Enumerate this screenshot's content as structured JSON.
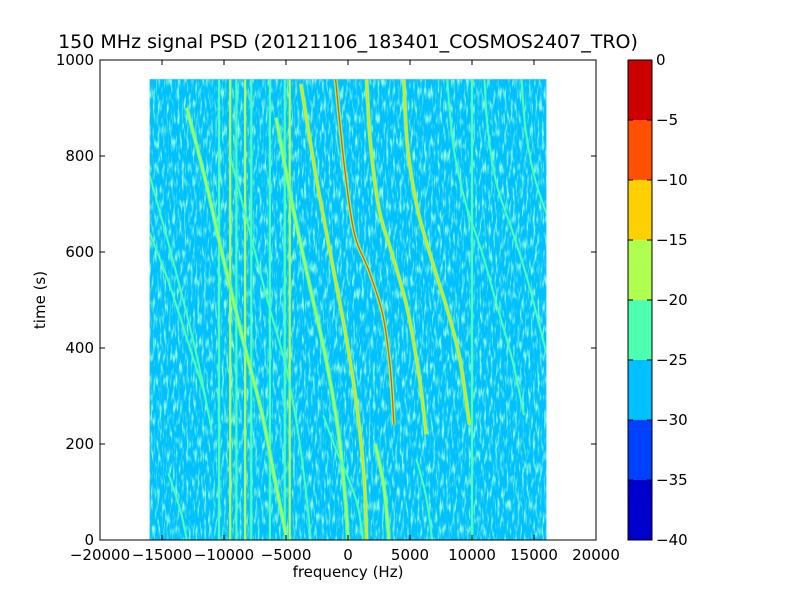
{
  "chart_data": {
    "type": "heatmap",
    "title": "150 MHz signal PSD (20121106_183401_COSMOS2407_TRO)",
    "xlabel": "frequency (Hz)",
    "ylabel": "time (s)",
    "xlim": [
      -20000,
      20000
    ],
    "ylim": [
      0,
      1000
    ],
    "x_ticks": [
      -20000,
      -15000,
      -10000,
      -5000,
      0,
      5000,
      10000,
      15000,
      20000
    ],
    "x_tick_labels": [
      "−20000",
      "−15000",
      "−10000",
      "−5000",
      "0",
      "5000",
      "10000",
      "15000",
      "20000"
    ],
    "y_ticks": [
      0,
      200,
      400,
      600,
      800,
      1000
    ],
    "y_tick_labels": [
      "0",
      "200",
      "400",
      "600",
      "800",
      "1000"
    ],
    "data_extent": {
      "x": [
        -16000,
        16000
      ],
      "y": [
        0,
        960
      ]
    },
    "background_level": -27.5,
    "background_color": "#00c0ff",
    "colorbar": {
      "range": [
        -40,
        0
      ],
      "ticks": [
        0,
        -5,
        -10,
        -15,
        -20,
        -25,
        -30,
        -35,
        -40
      ],
      "tick_labels": [
        "0",
        "−5",
        "−10",
        "−15",
        "−20",
        "−25",
        "−30",
        "−35",
        "−40"
      ],
      "bands": [
        {
          "from": -40,
          "to": -35,
          "color": "#0000cd"
        },
        {
          "from": -35,
          "to": -30,
          "color": "#0040ff"
        },
        {
          "from": -30,
          "to": -25,
          "color": "#00c0ff"
        },
        {
          "from": -25,
          "to": -20,
          "color": "#4dffb0"
        },
        {
          "from": -20,
          "to": -15,
          "color": "#b0ff50"
        },
        {
          "from": -15,
          "to": -10,
          "color": "#ffd000"
        },
        {
          "from": -10,
          "to": -5,
          "color": "#ff5000"
        },
        {
          "from": -5,
          "to": 0,
          "color": "#cd0000"
        }
      ]
    },
    "vertical_lines": [
      {
        "freq": -10400,
        "level": -22
      },
      {
        "freq": -9500,
        "level": -18
      },
      {
        "freq": -9000,
        "level": -20
      },
      {
        "freq": -8300,
        "level": -18
      },
      {
        "freq": -7800,
        "level": -20
      },
      {
        "freq": -6300,
        "level": -22
      },
      {
        "freq": -5100,
        "level": -20
      },
      {
        "freq": -4700,
        "level": -18
      },
      {
        "freq": 10000,
        "level": -22
      }
    ],
    "doppler_traces": [
      {
        "points": [
          [
            -16000,
            640
          ],
          [
            -14500,
            540
          ],
          [
            -13000,
            420
          ],
          [
            -11500,
            300
          ]
        ],
        "level": -22
      },
      {
        "points": [
          [
            -16000,
            760
          ],
          [
            -14500,
            620
          ],
          [
            -13000,
            470
          ],
          [
            -12000,
            360
          ],
          [
            -11000,
            230
          ]
        ],
        "level": -22
      },
      {
        "points": [
          [
            -13000,
            900
          ],
          [
            -11500,
            750
          ],
          [
            -10000,
            580
          ],
          [
            -8500,
            420
          ],
          [
            -7000,
            270
          ],
          [
            -6000,
            140
          ],
          [
            -5000,
            10
          ]
        ],
        "level": -18
      },
      {
        "points": [
          [
            -9500,
            800
          ],
          [
            -8000,
            650
          ],
          [
            -6500,
            500
          ],
          [
            -5000,
            360
          ],
          [
            -4000,
            220
          ],
          [
            -3300,
            80
          ],
          [
            -3000,
            0
          ]
        ],
        "level": -20
      },
      {
        "points": [
          [
            -5800,
            880
          ],
          [
            -4500,
            700
          ],
          [
            -3000,
            520
          ],
          [
            -1800,
            380
          ],
          [
            -800,
            230
          ],
          [
            -200,
            80
          ],
          [
            0,
            0
          ]
        ],
        "level": -15
      },
      {
        "points": [
          [
            -3800,
            950
          ],
          [
            -2600,
            760
          ],
          [
            -1300,
            580
          ],
          [
            -200,
            430
          ],
          [
            700,
            280
          ],
          [
            1300,
            130
          ],
          [
            1500,
            0
          ]
        ],
        "level": -12
      },
      {
        "points": [
          [
            -1000,
            960
          ],
          [
            -300,
            780
          ],
          [
            500,
            640
          ],
          [
            1700,
            560
          ],
          [
            2800,
            470
          ],
          [
            3400,
            360
          ],
          [
            3700,
            240
          ]
        ],
        "level": -8
      },
      {
        "points": [
          [
            1500,
            960
          ],
          [
            1800,
            830
          ],
          [
            2500,
            690
          ],
          [
            3500,
            600
          ],
          [
            4800,
            480
          ],
          [
            5800,
            330
          ],
          [
            6300,
            220
          ]
        ],
        "level": -12
      },
      {
        "points": [
          [
            4500,
            960
          ],
          [
            4800,
            820
          ],
          [
            5600,
            690
          ],
          [
            6800,
            580
          ],
          [
            8000,
            480
          ],
          [
            9000,
            380
          ],
          [
            9800,
            240
          ]
        ],
        "level": -12
      },
      {
        "points": [
          [
            8000,
            960
          ],
          [
            8500,
            820
          ],
          [
            9500,
            700
          ],
          [
            10800,
            600
          ],
          [
            12000,
            490
          ],
          [
            13200,
            380
          ],
          [
            14200,
            260
          ]
        ],
        "level": -20
      },
      {
        "points": [
          [
            11000,
            960
          ],
          [
            11300,
            850
          ],
          [
            12000,
            740
          ],
          [
            13300,
            640
          ],
          [
            14500,
            540
          ],
          [
            15500,
            440
          ],
          [
            16000,
            390
          ]
        ],
        "level": -22
      },
      {
        "points": [
          [
            14000,
            960
          ],
          [
            14300,
            860
          ],
          [
            15000,
            760
          ],
          [
            16000,
            680
          ]
        ],
        "level": -22
      },
      {
        "points": [
          [
            -2000,
            260
          ],
          [
            -1000,
            190
          ],
          [
            0,
            130
          ],
          [
            800,
            70
          ],
          [
            1200,
            0
          ]
        ],
        "level": -20
      },
      {
        "points": [
          [
            2200,
            200
          ],
          [
            2900,
            110
          ],
          [
            3300,
            0
          ]
        ],
        "level": -15
      },
      {
        "points": [
          [
            5500,
            170
          ],
          [
            6300,
            90
          ],
          [
            6800,
            0
          ]
        ],
        "level": -22
      },
      {
        "points": [
          [
            -14500,
            140
          ],
          [
            -13500,
            60
          ],
          [
            -13000,
            0
          ]
        ],
        "level": -22
      }
    ]
  }
}
